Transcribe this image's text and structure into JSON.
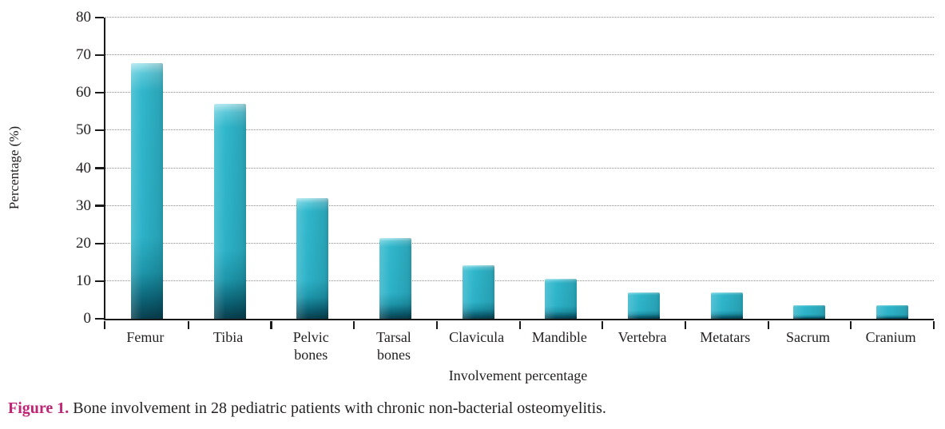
{
  "figure": {
    "caption_label": "Figure 1.",
    "caption_text": " Bone involvement in 28 pediatric patients with chronic non-bacterial osteomyelitis."
  },
  "chart_data": {
    "type": "bar",
    "title": "",
    "xlabel": "Involvement percentage",
    "ylabel": "Percentage (%)",
    "categories": [
      "Femur",
      "Tibia",
      "Pelvic bones",
      "Tarsal bones",
      "Clavicula",
      "Mandible",
      "Vertebra",
      "Metatars",
      "Sacrum",
      "Cranium"
    ],
    "values": [
      67.9,
      57.1,
      32.1,
      21.4,
      14.3,
      10.7,
      7.1,
      7.1,
      3.6,
      3.6
    ],
    "ylim": [
      0,
      80
    ],
    "yticks": [
      0,
      10,
      20,
      30,
      40,
      50,
      60,
      70,
      80
    ],
    "grid": "horizontal-dotted",
    "legend": "none",
    "colors": {
      "bar_mid": "#2bb3c9",
      "bar_highlight": "#aee6ef",
      "bar_shadow": "#093f4e",
      "axis": "#1a1a1a",
      "gridline": "#8c8c8c",
      "text": "#231f20",
      "caption_label": "#bf2475"
    }
  }
}
